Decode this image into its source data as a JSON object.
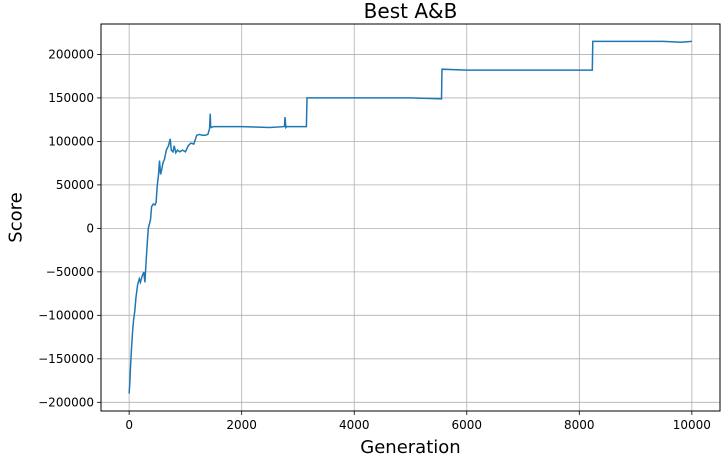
{
  "chart_data": {
    "type": "line",
    "title": "Best A&B",
    "xlabel": "Generation",
    "ylabel": "Score",
    "xlim": [
      -500,
      10500
    ],
    "ylim": [
      -210000,
      235000
    ],
    "grid": true,
    "line_color": "#1f77b4",
    "x_ticks": [
      0,
      2000,
      4000,
      6000,
      8000,
      10000
    ],
    "x_tick_labels": [
      "0",
      "2000",
      "4000",
      "6000",
      "8000",
      "10000"
    ],
    "y_ticks": [
      -200000,
      -150000,
      -100000,
      -50000,
      0,
      50000,
      100000,
      150000,
      200000
    ],
    "y_tick_labels": [
      "−200000",
      "−150000",
      "−100000",
      "−50000",
      "0",
      "50000",
      "100000",
      "150000",
      "200000"
    ],
    "series": [
      {
        "x": [
          0,
          10,
          25,
          40,
          60,
          80,
          100,
          120,
          150,
          180,
          200,
          230,
          260,
          280,
          300,
          320,
          340,
          360,
          380,
          400,
          430,
          460,
          480,
          500,
          520,
          540,
          560,
          580,
          600,
          630,
          660,
          700,
          730,
          750,
          780,
          800,
          830,
          860,
          900,
          950,
          1000,
          1050,
          1080,
          1100,
          1150,
          1200,
          1250,
          1300,
          1350,
          1400,
          1430,
          1440,
          1450,
          1460,
          1500,
          2000,
          2500,
          2760,
          2770,
          2785,
          2800,
          3150,
          3160,
          3500,
          4000,
          4500,
          5000,
          5550,
          5560,
          6000,
          7000,
          8000,
          8230,
          8240,
          9000,
          9500,
          9800,
          10000
        ],
        "y": [
          -190000,
          -180000,
          -160000,
          -140000,
          -120000,
          -105000,
          -95000,
          -80000,
          -65000,
          -58000,
          -62000,
          -55000,
          -50000,
          -62000,
          -40000,
          -20000,
          0,
          5000,
          10000,
          25000,
          28000,
          27000,
          30000,
          50000,
          60000,
          78000,
          62000,
          68000,
          75000,
          80000,
          90000,
          95000,
          103000,
          90000,
          88000,
          95000,
          87000,
          90000,
          88000,
          90000,
          88000,
          95000,
          97000,
          98000,
          97000,
          107000,
          108000,
          107000,
          107000,
          108000,
          115000,
          132000,
          117000,
          116000,
          117000,
          117000,
          116000,
          117000,
          128000,
          116000,
          117000,
          117000,
          150000,
          150000,
          150000,
          150000,
          150000,
          149000,
          183000,
          182000,
          182000,
          182000,
          182000,
          215000,
          215000,
          215000,
          214000,
          215000
        ]
      }
    ]
  }
}
